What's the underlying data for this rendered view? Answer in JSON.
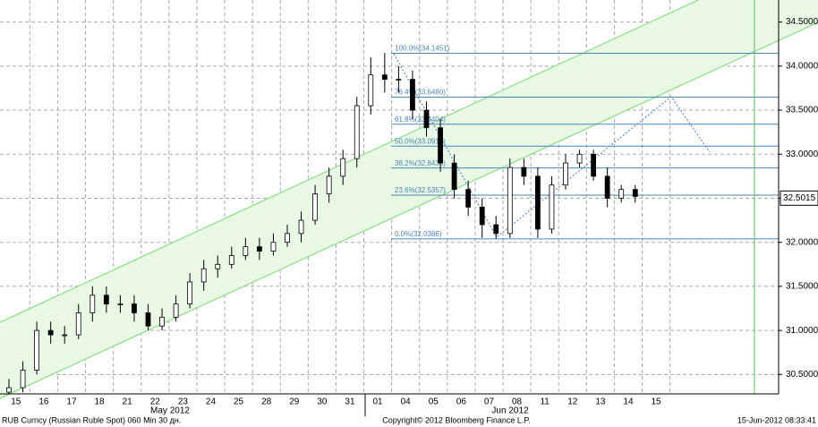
{
  "chart_data": {
    "type": "candlestick",
    "categories": [
      "15",
      null,
      "16",
      null,
      "17",
      null,
      "18",
      null,
      "21",
      null,
      "22",
      null,
      "23",
      null,
      "24",
      null,
      "25",
      null,
      "28",
      null,
      "29",
      null,
      "30",
      null,
      "31",
      null,
      "01",
      null,
      "04",
      null,
      "05",
      null,
      "06",
      null,
      "07",
      null,
      "08",
      null,
      "11",
      null,
      "12",
      null,
      "13",
      null,
      "14",
      null,
      "15",
      null
    ],
    "month_labels": [
      "May 2012",
      "Jun 2012"
    ],
    "open": [
      30.3,
      30.35,
      30.55,
      31.0,
      30.95,
      30.95,
      31.2,
      31.4,
      31.3,
      31.3,
      31.2,
      31.05,
      31.15,
      31.3,
      31.55,
      31.7,
      31.75,
      31.85,
      31.95,
      31.9,
      32.0,
      32.1,
      32.25,
      32.55,
      32.75,
      32.95,
      33.55,
      33.9,
      33.85,
      33.85,
      33.5,
      33.3,
      32.9,
      32.6,
      32.4,
      32.2,
      32.1,
      32.85,
      32.75,
      32.15,
      32.65,
      32.9,
      33.0,
      32.75,
      32.5,
      32.6,
      null,
      null
    ],
    "high": [
      30.45,
      30.65,
      31.1,
      31.1,
      31.05,
      31.3,
      31.5,
      31.5,
      31.4,
      31.4,
      31.3,
      31.25,
      31.4,
      31.65,
      31.8,
      31.85,
      31.95,
      32.05,
      32.05,
      32.1,
      32.2,
      32.35,
      32.65,
      32.85,
      33.05,
      33.65,
      34.1,
      34.15,
      34.0,
      33.95,
      33.6,
      33.4,
      33.0,
      32.7,
      32.5,
      32.3,
      32.95,
      32.95,
      32.85,
      32.75,
      33.0,
      33.05,
      33.05,
      32.85,
      32.65,
      32.65,
      null,
      null
    ],
    "low": [
      30.28,
      30.3,
      30.5,
      30.85,
      30.85,
      30.9,
      31.1,
      31.2,
      31.2,
      31.1,
      31.0,
      31.0,
      31.1,
      31.25,
      31.45,
      31.6,
      31.7,
      31.8,
      31.8,
      31.85,
      31.95,
      32.0,
      32.2,
      32.45,
      32.65,
      32.85,
      33.45,
      33.7,
      33.7,
      33.4,
      33.2,
      32.8,
      32.5,
      32.3,
      32.05,
      32.04,
      32.05,
      32.65,
      32.05,
      32.1,
      32.6,
      32.85,
      32.7,
      32.4,
      32.45,
      32.45,
      null,
      null
    ],
    "close": [
      30.35,
      30.55,
      31.0,
      30.95,
      30.95,
      31.2,
      31.4,
      31.3,
      31.3,
      31.2,
      31.05,
      31.15,
      31.3,
      31.55,
      31.7,
      31.75,
      31.85,
      31.95,
      31.9,
      32.0,
      32.1,
      32.25,
      32.55,
      32.75,
      32.95,
      33.55,
      33.9,
      33.85,
      33.85,
      33.5,
      33.3,
      32.9,
      32.6,
      32.4,
      32.2,
      32.1,
      32.85,
      32.75,
      32.15,
      32.65,
      32.9,
      33.0,
      32.75,
      32.5,
      32.6,
      32.52,
      null,
      null
    ],
    "up_color": "#ffffff",
    "down_color": "#000000",
    "ylim": [
      30.28,
      34.75
    ],
    "yticks": [
      {
        "value": 30.5,
        "label": "30.5000"
      },
      {
        "value": 31,
        "label": "31.0000"
      },
      {
        "value": 31.5,
        "label": "31.5000"
      },
      {
        "value": 32,
        "label": "32.0000"
      },
      {
        "value": 32.5,
        "label": "32.5000"
      },
      {
        "value": 33,
        "label": "33.0000"
      },
      {
        "value": 33.5,
        "label": "33.5000"
      },
      {
        "value": 34,
        "label": "34.0000"
      },
      {
        "value": 34.5,
        "label": "34.5000"
      }
    ],
    "grid": true,
    "fib_color": "#4a86b8",
    "fib_levels": [
      {
        "value": 34.1451,
        "label": "100.0%(34.1451)"
      },
      {
        "value": 33.648,
        "label": "76.4%(33.6480)"
      },
      {
        "value": 33.3404,
        "label": "61.8%(33.3404)"
      },
      {
        "value": 33.0919,
        "label": "50.0%(33.0919)"
      },
      {
        "value": 32.8433,
        "label": "38.2%(32.8433)"
      },
      {
        "value": 32.5357,
        "label": "23.6%(32.5357)"
      },
      {
        "value": 32.0386,
        "label": "0.0%(32.0386)"
      }
    ],
    "last_price": 32.5015,
    "footer_left": "RUB Curncy (Russian Ruble Spot) 060 Min 30 дн.",
    "footer_center": "Copyright© 2012 Bloomberg Finance L.P.",
    "footer_right": "15-Jun-2012 08:33:41"
  }
}
